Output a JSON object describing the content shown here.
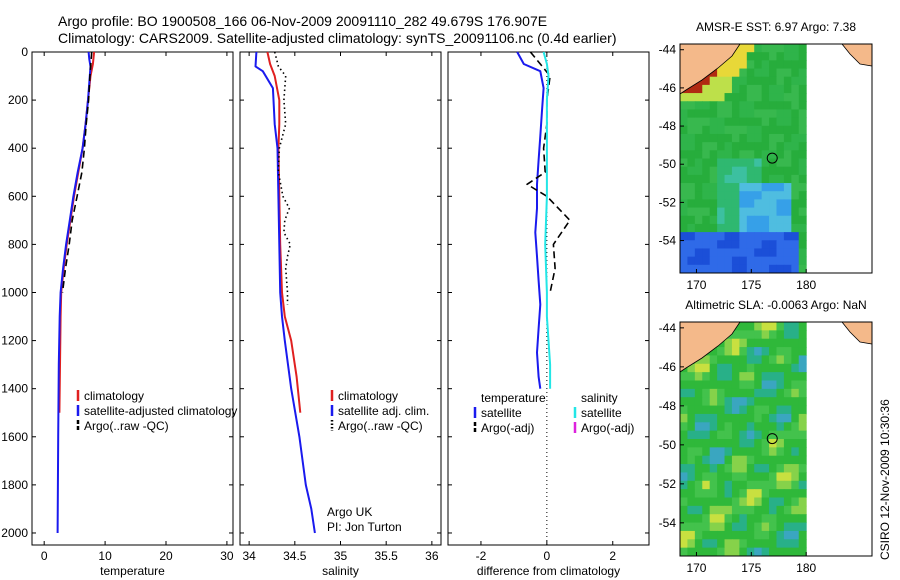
{
  "header": {
    "line1": "Argo profile: BO 1900508_166 06-Nov-2009 20091110_282 49.679S 176.907E",
    "line2": "Climatology: CARS2009. Satellite-adjusted climatology: synTS_20091106.nc (0.4d earlier)"
  },
  "stamp": "CSIRO 12-Nov-2009 10:30:36",
  "colors": {
    "climatology": "#e02020",
    "satellite": "#1a1aee",
    "argo": "#000000",
    "salinity_satellite": "#22e6e6",
    "salinity_argo": "#dd22dd",
    "land": "#f4b98a"
  },
  "chart_data": [
    {
      "type": "line",
      "xlabel": "temperature",
      "ylabel": "",
      "xlim": [
        -2,
        31
      ],
      "ylim": [
        2050,
        0
      ],
      "xticks": [
        0,
        10,
        20,
        30
      ],
      "yticks": [
        0,
        200,
        400,
        600,
        800,
        1000,
        1200,
        1400,
        1600,
        1800,
        2000
      ],
      "series": [
        {
          "name": "climatology",
          "color": "#e02020",
          "style": "solid",
          "x": [
            8.2,
            8.0,
            7.6,
            7.2,
            6.8,
            6.3,
            5.6,
            4.9,
            4.3,
            3.7,
            3.2,
            2.8,
            2.7,
            2.6,
            2.5
          ],
          "y": [
            0,
            50,
            100,
            200,
            300,
            400,
            500,
            600,
            700,
            800,
            900,
            1000,
            1100,
            1300,
            1500
          ]
        },
        {
          "name": "satellite-adjusted climatology",
          "color": "#1a1aee",
          "style": "solid",
          "x": [
            7.3,
            7.4,
            7.6,
            7.2,
            6.8,
            6.3,
            5.5,
            4.8,
            4.2,
            3.6,
            3.1,
            2.7,
            2.55,
            2.4,
            2.3,
            2.2
          ],
          "y": [
            0,
            30,
            60,
            200,
            300,
            400,
            500,
            600,
            700,
            800,
            900,
            1000,
            1100,
            1300,
            1600,
            2000
          ]
        },
        {
          "name": "Argo(..raw -QC)",
          "color": "#000000",
          "style": "dashed",
          "x": [
            7.8,
            7.5,
            7.3,
            6.9,
            6.6,
            6.2,
            5.4,
            4.6,
            4.1,
            3.5,
            3.0
          ],
          "y": [
            0,
            100,
            200,
            300,
            400,
            500,
            600,
            700,
            800,
            900,
            1000
          ]
        }
      ],
      "legend": [
        "climatology",
        "satellite-adjusted climatology",
        "Argo(..raw -QC)"
      ]
    },
    {
      "type": "line",
      "xlabel": "salinity",
      "ylabel": "",
      "xlim": [
        33.9,
        36.1
      ],
      "ylim": [
        2050,
        0
      ],
      "xticks": [
        34,
        34.5,
        35,
        35.5,
        36
      ],
      "yticks": [
        0,
        200,
        400,
        600,
        800,
        1000,
        1200,
        1400,
        1600,
        1800,
        2000
      ],
      "series": [
        {
          "name": "climatology",
          "color": "#e02020",
          "style": "solid",
          "x": [
            34.2,
            34.23,
            34.28,
            34.33,
            34.33,
            34.32,
            34.33,
            34.34,
            34.36,
            34.39,
            34.46,
            34.52,
            34.56
          ],
          "y": [
            0,
            50,
            100,
            200,
            300,
            400,
            600,
            800,
            1000,
            1100,
            1200,
            1350,
            1500
          ]
        },
        {
          "name": "satellite adj. clim.",
          "color": "#1a1aee",
          "style": "solid",
          "x": [
            34.08,
            34.07,
            34.15,
            34.26,
            34.28,
            34.31,
            34.32,
            34.33,
            34.34,
            34.36,
            34.39,
            34.46,
            34.55,
            34.62,
            34.68,
            34.72
          ],
          "y": [
            0,
            60,
            80,
            150,
            300,
            400,
            600,
            800,
            1000,
            1100,
            1200,
            1400,
            1600,
            1800,
            1900,
            2000
          ]
        },
        {
          "name": "Argo(..raw -QC)",
          "color": "#000000",
          "style": "dotted",
          "x": [
            34.28,
            34.32,
            34.4,
            34.38,
            34.4,
            34.33,
            34.32,
            34.37,
            34.44,
            34.39,
            34.38,
            34.45,
            34.42,
            34.4,
            34.42,
            34.42
          ],
          "y": [
            0,
            60,
            100,
            200,
            300,
            400,
            500,
            600,
            650,
            700,
            750,
            800,
            850,
            900,
            1000,
            1050
          ]
        }
      ],
      "legend": [
        "climatology",
        "satellite adj. clim.",
        "Argo(..raw -QC)"
      ],
      "annotation": {
        "line1": "Argo UK",
        "line2": "PI: Jon Turton"
      }
    },
    {
      "type": "line",
      "xlabel": "difference from climatology",
      "ylabel": "",
      "xlim": [
        -3,
        3.1
      ],
      "ylim": [
        2050,
        0
      ],
      "xticks": [
        -2,
        0,
        2
      ],
      "yticks": [
        0,
        200,
        400,
        600,
        800,
        1000,
        1200,
        1400,
        1600,
        1800,
        2000
      ],
      "series": [
        {
          "name": "temperature satellite",
          "color": "#1a1aee",
          "style": "solid",
          "x": [
            -0.9,
            -0.7,
            -0.2,
            -0.1,
            -0.15,
            -0.2,
            -0.25,
            -0.3,
            -0.3,
            -0.35,
            -0.3,
            -0.25,
            -0.2,
            -0.25,
            -0.3,
            -0.25,
            -0.2
          ],
          "y": [
            0,
            50,
            80,
            150,
            250,
            350,
            450,
            550,
            650,
            750,
            850,
            950,
            1050,
            1150,
            1250,
            1350,
            1400
          ]
        },
        {
          "name": "temperature Argo(-adj)",
          "color": "#000000",
          "style": "dashed",
          "x": [
            -0.5,
            -0.2,
            0.1,
            0.0,
            0.0,
            -0.1,
            -0.05,
            -0.6,
            0.0,
            0.7,
            0.2,
            0.25,
            0.1
          ],
          "y": [
            0,
            50,
            100,
            200,
            300,
            400,
            500,
            550,
            600,
            700,
            800,
            900,
            1000
          ]
        },
        {
          "name": "salinity satellite",
          "color": "#22e6e6",
          "style": "solid",
          "x": [
            -0.1,
            0.0,
            0.05,
            0.0,
            0.0,
            0.0,
            -0.05,
            0.0,
            0.0,
            0.05,
            0.1,
            0.1
          ],
          "y": [
            0,
            50,
            100,
            200,
            400,
            600,
            800,
            1000,
            1100,
            1200,
            1300,
            1400
          ]
        }
      ],
      "legend_headers": [
        "temperature",
        "salinity"
      ],
      "legend": [
        "satellite",
        "Argo(-adj)",
        "satellite",
        "Argo(-adj)"
      ]
    },
    {
      "type": "heatmap",
      "title": "AMSR-E SST: 6.97 Argo: 7.38",
      "xticks": [
        170,
        175,
        180
      ],
      "yticks": [
        -44,
        -46,
        -48,
        -50,
        -52,
        -54
      ],
      "xlim": [
        168.5,
        186
      ],
      "ylim": [
        -55.7,
        -43.7
      ],
      "marker": {
        "lon": 176.907,
        "lat": -49.679
      }
    },
    {
      "type": "heatmap",
      "title": "Altimetric SLA: -0.0063 Argo: NaN",
      "xticks": [
        170,
        175,
        180
      ],
      "yticks": [
        -44,
        -46,
        -48,
        -50,
        -52,
        -54
      ],
      "xlim": [
        168.5,
        186
      ],
      "ylim": [
        -55.7,
        -43.7
      ],
      "marker": {
        "lon": 176.907,
        "lat": -49.679
      }
    }
  ]
}
